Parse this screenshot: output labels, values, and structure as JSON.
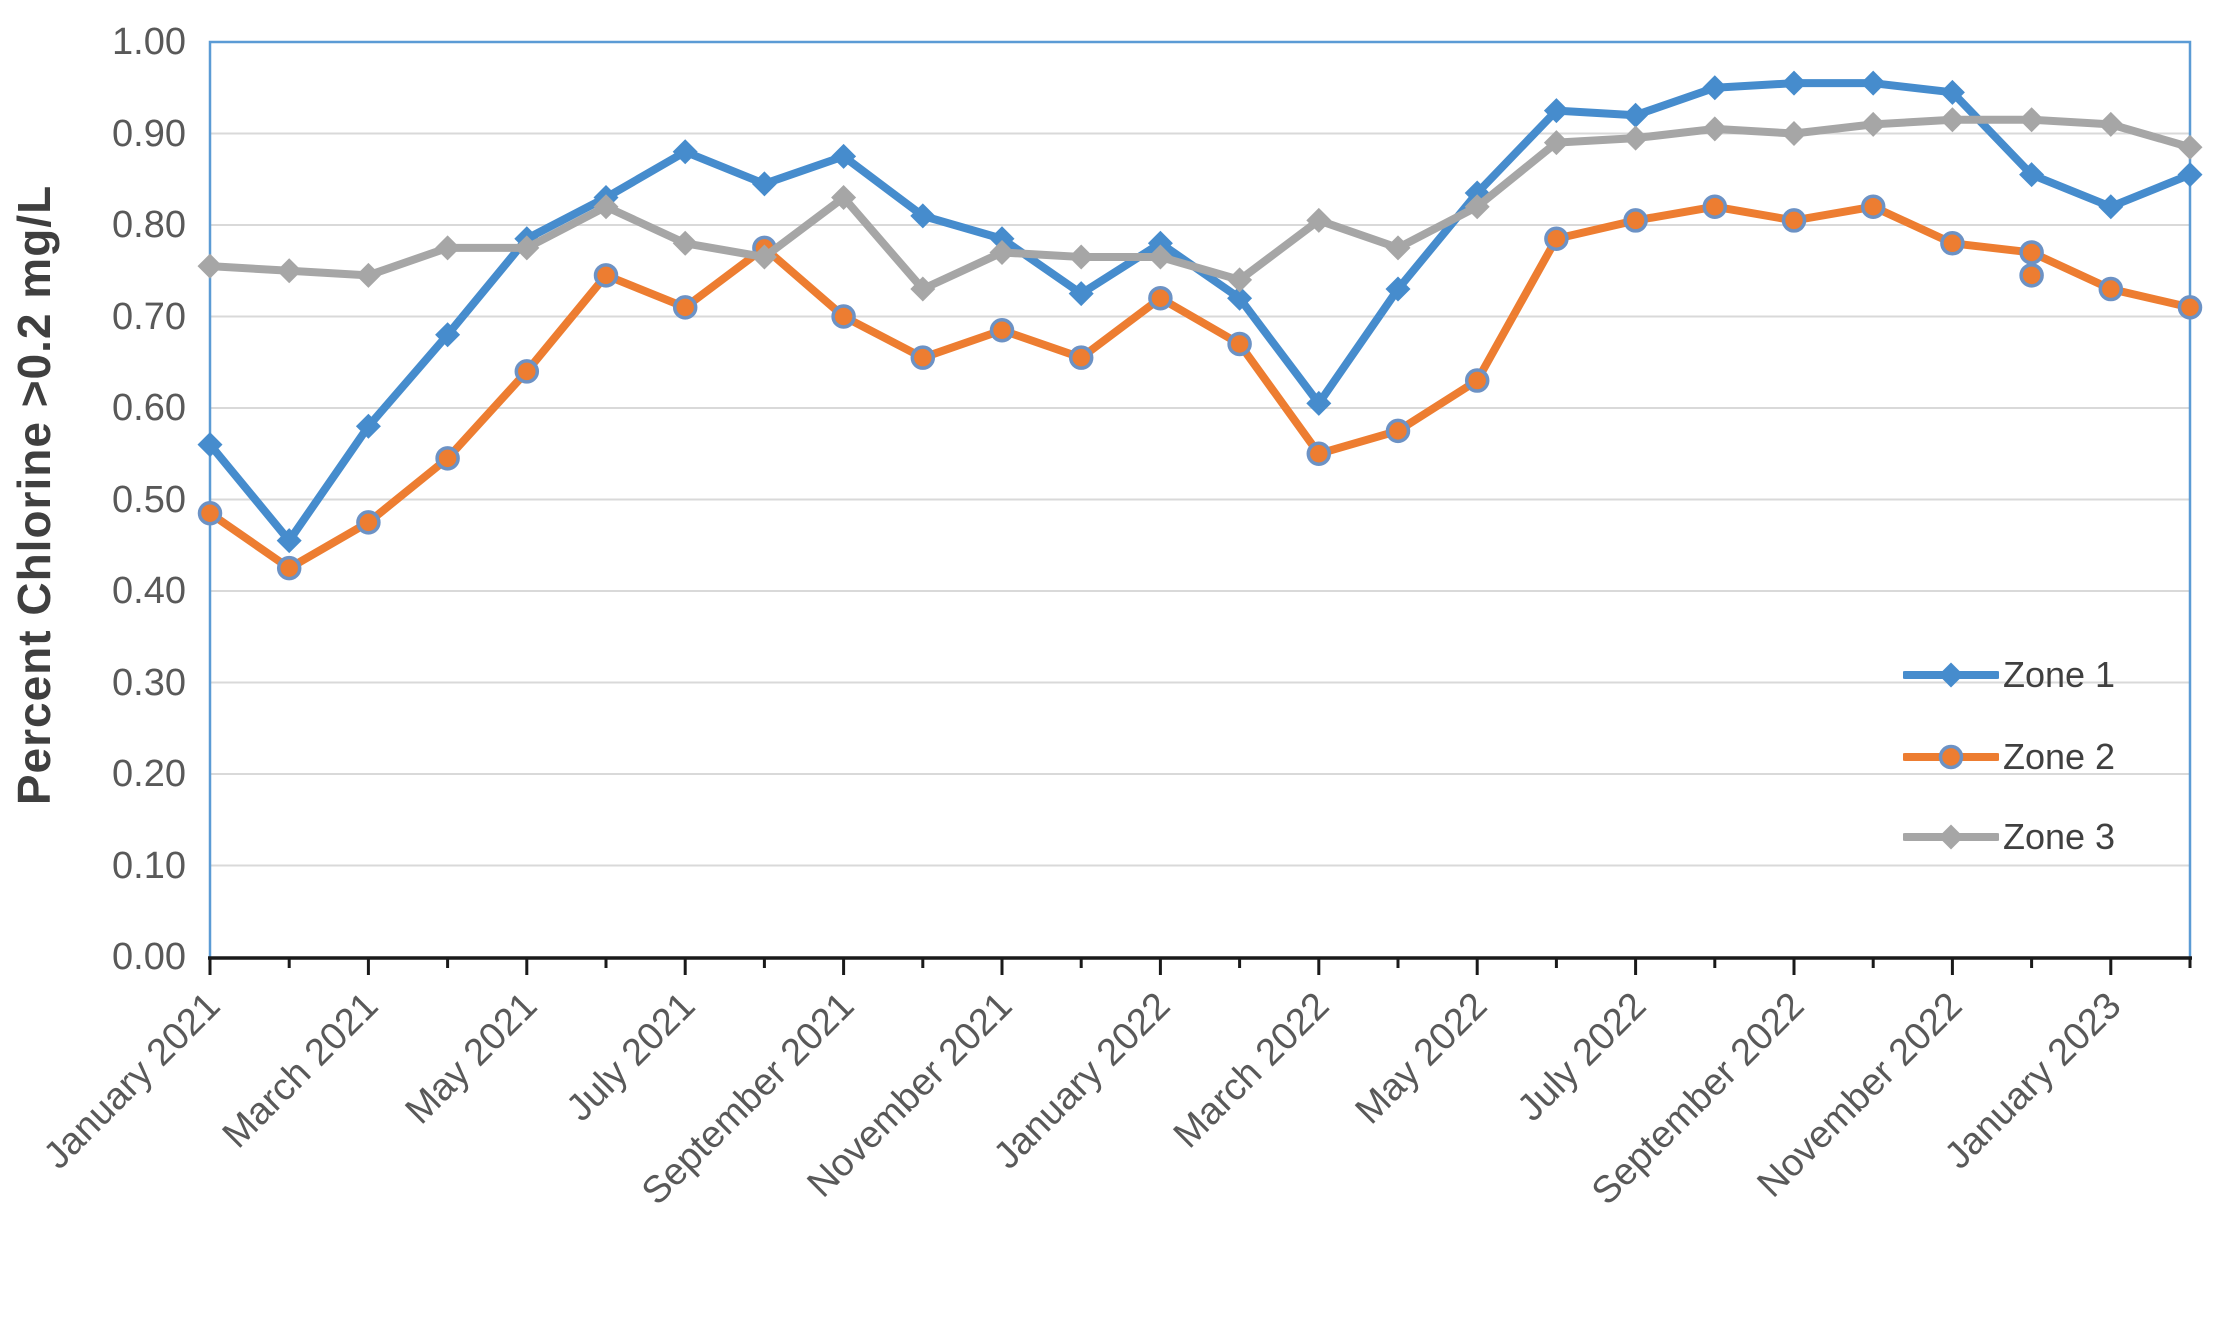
{
  "chart_data": {
    "type": "line",
    "title": "",
    "xlabel": "",
    "ylabel": "Percent Chlorine >0.2 mg/L",
    "ylim": [
      0.0,
      1.0
    ],
    "ytick_step": 0.1,
    "ytick_labels": [
      "0.00",
      "0.10",
      "0.20",
      "0.30",
      "0.40",
      "0.50",
      "0.60",
      "0.70",
      "0.80",
      "0.90",
      "1.00"
    ],
    "grid": "horizontal",
    "legend_position": "right-middle",
    "xtick_label_every": 2,
    "xtick_labels_shown": [
      "January 2021",
      "March 2021",
      "May 2021",
      "July 2021",
      "September 2021",
      "November 2021",
      "January 2022",
      "March 2022",
      "May 2022",
      "July 2022",
      "September 2022",
      "November 2022",
      "January 2023"
    ],
    "categories": [
      "January 2021",
      "February 2021",
      "March 2021",
      "April 2021",
      "May 2021",
      "June 2021",
      "July 2021",
      "August 2021",
      "September 2021",
      "October 2021",
      "November 2021",
      "December 2021",
      "January 2022",
      "February 2022",
      "March 2022",
      "April 2022",
      "May 2022",
      "June 2022",
      "July 2022",
      "August 2022",
      "September 2022",
      "October 2022",
      "November 2022",
      "December 2022",
      "January 2023",
      "February 2023"
    ],
    "series": [
      {
        "name": "Zone 1",
        "color": "#468CCD",
        "marker": "diamond",
        "values": [
          0.56,
          0.455,
          0.58,
          0.68,
          0.785,
          0.83,
          0.88,
          0.845,
          0.875,
          0.81,
          0.785,
          0.725,
          0.78,
          0.72,
          0.605,
          0.73,
          0.835,
          0.925,
          0.92,
          0.95,
          0.955,
          0.955,
          0.945,
          0.855,
          0.82,
          0.855
        ]
      },
      {
        "name": "Zone 2",
        "color": "#ED7D31",
        "marker": "circle",
        "marker_ring": "#6C92C5",
        "values": [
          0.485,
          0.425,
          0.475,
          0.545,
          0.64,
          0.745,
          0.71,
          0.775,
          0.7,
          0.655,
          0.685,
          0.655,
          0.72,
          0.67,
          0.55,
          0.575,
          0.63,
          0.785,
          0.805,
          0.82,
          0.805,
          0.82,
          0.78,
          0.77,
          0.73,
          0.71
        ]
      },
      {
        "name": "Zone 3",
        "color": "#A6A6A6",
        "marker": "diamond",
        "values": [
          0.755,
          0.75,
          0.745,
          0.775,
          0.775,
          0.82,
          0.78,
          0.765,
          0.83,
          0.73,
          0.77,
          0.765,
          0.765,
          0.74,
          0.805,
          0.775,
          0.82,
          0.89,
          0.895,
          0.905,
          0.9,
          0.91,
          0.915,
          0.915,
          0.91,
          0.885
        ]
      }
    ],
    "extra_markers": [
      {
        "series": "Zone 2",
        "category": "December 2022",
        "value": 0.745
      }
    ],
    "colors": {
      "plot_border": "#5B9BD5",
      "gridline": "#D9D9D9",
      "axis_line": "#1a1a1a",
      "tick_label": "#595959",
      "legend_text": "#404040",
      "axis_title": "#3f3f3f"
    }
  }
}
